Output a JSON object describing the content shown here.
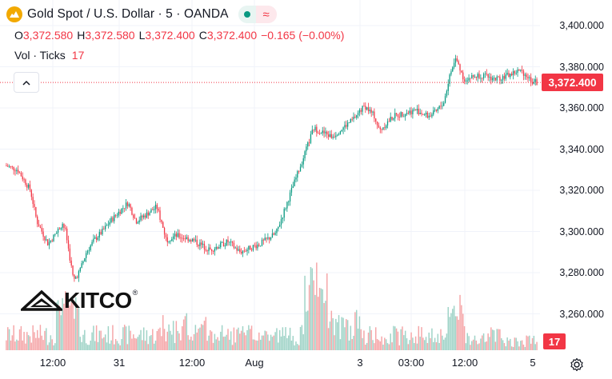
{
  "header": {
    "title": "Gold Spot / U.S. Dollar · 5 · OANDA",
    "ohlc": [
      {
        "label": "O",
        "value": "3,372.580"
      },
      {
        "label": "H",
        "value": "3,372.580"
      },
      {
        "label": "L",
        "value": "3,372.400"
      },
      {
        "label": "C",
        "value": "3,372.400"
      }
    ],
    "change": "−0.165 (−0.00%)",
    "vol_label": "Vol · Ticks",
    "vol_value": "17",
    "icons": [
      "gold-coin-icon",
      "green-dot-icon",
      "approx-icon",
      "chevron-up-icon"
    ]
  },
  "watermark": {
    "text": "KITCO"
  },
  "colors": {
    "up": "#089981",
    "down": "#f23645",
    "vol_up": "#9fd3c7",
    "vol_down": "#f5a6a8",
    "grid": "#f0f3fa"
  },
  "settings_icon": "gear-icon",
  "chart_data": {
    "type": "candlestick",
    "title": "Gold Spot / U.S. Dollar · 5 · OANDA",
    "y_axis": {
      "ticks": [
        "3,400.000",
        "3,380.000",
        "3,360.000",
        "3,340.000",
        "3,320.000",
        "3,300.000",
        "3,280.000",
        "3,260.000"
      ],
      "range": [
        3242,
        3408
      ]
    },
    "x_axis": {
      "ticks": [
        "12:00",
        "31",
        "12:00",
        "Aug",
        "3",
        "03:00",
        "12:00",
        "5"
      ]
    },
    "last_price": "3,372.400",
    "last_volume": "17",
    "price_path": [
      {
        "t": "31 00:00",
        "price": 3332
      },
      {
        "t": "31 03:00",
        "price": 3330
      },
      {
        "t": "31 06:00",
        "price": 3320
      },
      {
        "t": "31 08:00",
        "price": 3305
      },
      {
        "t": "31 10:00",
        "price": 3294
      },
      {
        "t": "31 12:00",
        "price": 3299
      },
      {
        "t": "31 14:00",
        "price": 3304
      },
      {
        "t": "31 15:00",
        "price": 3300
      },
      {
        "t": "31 16:00",
        "price": 3276
      },
      {
        "t": "31 18:00",
        "price": 3281
      },
      {
        "t": "31 20:00",
        "price": 3290
      },
      {
        "t": "31 22:00",
        "price": 3296
      },
      {
        "t": "Jul 31 00:00",
        "price": 3300
      },
      {
        "t": "Jul 31 04:00",
        "price": 3306
      },
      {
        "t": "Jul 31 08:00",
        "price": 3314
      },
      {
        "t": "Jul 31 10:00",
        "price": 3305
      },
      {
        "t": "Jul 31 12:00",
        "price": 3308
      },
      {
        "t": "Jul 31 15:00",
        "price": 3312
      },
      {
        "t": "Jul 31 18:00",
        "price": 3296
      },
      {
        "t": "Jul 31 21:00",
        "price": 3298
      },
      {
        "t": "Aug 1 00:00",
        "price": 3296
      },
      {
        "t": "Aug 1 03:00",
        "price": 3291
      },
      {
        "t": "Aug 1 06:00",
        "price": 3295
      },
      {
        "t": "Aug 1 09:00",
        "price": 3290
      },
      {
        "t": "Aug 1 12:00",
        "price": 3294
      },
      {
        "t": "Aug 1 14:00",
        "price": 3299
      },
      {
        "t": "Aug 1 15:00",
        "price": 3340
      },
      {
        "t": "Aug 1 16:00",
        "price": 3350
      },
      {
        "t": "Aug 1 18:00",
        "price": 3346
      },
      {
        "t": "Aug 1 21:00",
        "price": 3354
      },
      {
        "t": "Aug 3 22:00",
        "price": 3361
      },
      {
        "t": "Aug 4 00:00",
        "price": 3356
      },
      {
        "t": "Aug 4 02:00",
        "price": 3349
      },
      {
        "t": "Aug 4 04:00",
        "price": 3356
      },
      {
        "t": "Aug 4 06:00",
        "price": 3359
      },
      {
        "t": "Aug 4 08:00",
        "price": 3356
      },
      {
        "t": "Aug 4 10:00",
        "price": 3358
      },
      {
        "t": "Aug 4 12:00",
        "price": 3363
      },
      {
        "t": "Aug 4 13:00",
        "price": 3377
      },
      {
        "t": "Aug 4 14:00",
        "price": 3384
      },
      {
        "t": "Aug 4 16:00",
        "price": 3374
      },
      {
        "t": "Aug 4 18:00",
        "price": 3376
      },
      {
        "t": "Aug 4 20:00",
        "price": 3374
      },
      {
        "t": "Aug 4 22:00",
        "price": 3376
      },
      {
        "t": "Aug 5 00:00",
        "price": 3378
      },
      {
        "t": "Aug 5 02:00",
        "price": 3377
      },
      {
        "t": "Aug 5 04:00",
        "price": 3373
      },
      {
        "t": "Aug 5 05:00",
        "price": 3372.4
      }
    ]
  }
}
